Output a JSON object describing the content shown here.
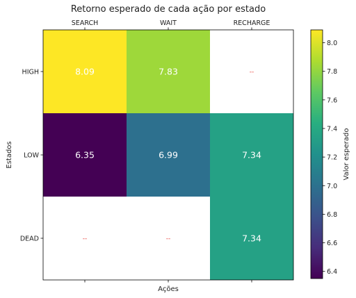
{
  "chart_data": {
    "type": "heatmap",
    "title": "Retorno esperado de cada ação por estado",
    "xlabel": "Ações",
    "ylabel": "Estados",
    "colorbar_label": "Valor esperado",
    "columns": [
      "SEARCH",
      "WAIT",
      "RECHARGE"
    ],
    "rows": [
      "HIGH",
      "LOW",
      "DEAD"
    ],
    "values": [
      [
        8.09,
        7.83,
        null
      ],
      [
        6.35,
        6.99,
        7.34
      ],
      [
        null,
        null,
        7.34
      ]
    ],
    "cell_labels": [
      [
        "8.09",
        "7.83",
        "--"
      ],
      [
        "6.35",
        "6.99",
        "7.34"
      ],
      [
        "--",
        "--",
        "7.34"
      ]
    ],
    "colorbar_range": [
      6.35,
      8.09
    ],
    "colorbar_ticks": [
      "6.4",
      "6.6",
      "6.8",
      "7.0",
      "7.2",
      "7.4",
      "7.6",
      "7.8",
      "8.0"
    ],
    "colormap": "viridis",
    "missing_color": "#ffffff",
    "missing_label_color": "#e8413c",
    "x_ticks_position": "top"
  }
}
